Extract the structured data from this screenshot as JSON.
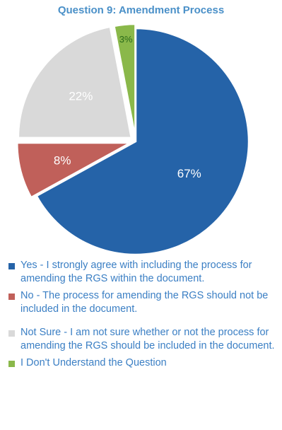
{
  "chart_data": {
    "type": "pie",
    "title": "Question 9: Amendment Process",
    "slices": [
      {
        "label": "Yes - I strongly agree with including the process for amending the RGS within the document.",
        "value": 67,
        "display": "67%",
        "color": "#2563a8",
        "text_color": "#ffffff"
      },
      {
        "label": "No - The process for amending the RGS should not be included in the document.",
        "value": 8,
        "display": "8%",
        "color": "#c0605a",
        "text_color": "#ffffff"
      },
      {
        "label": "Not Sure - I am not sure whether or not the process for amending the RGS should be included in the document.",
        "value": 22,
        "display": "22%",
        "color": "#d9d9d9",
        "text_color": "#ffffff"
      },
      {
        "label": "I Don't Understand the Question",
        "value": 3,
        "display": "3%",
        "color": "#8ab84a",
        "text_color": "#2a6a1a"
      }
    ],
    "legend_position": "bottom"
  }
}
